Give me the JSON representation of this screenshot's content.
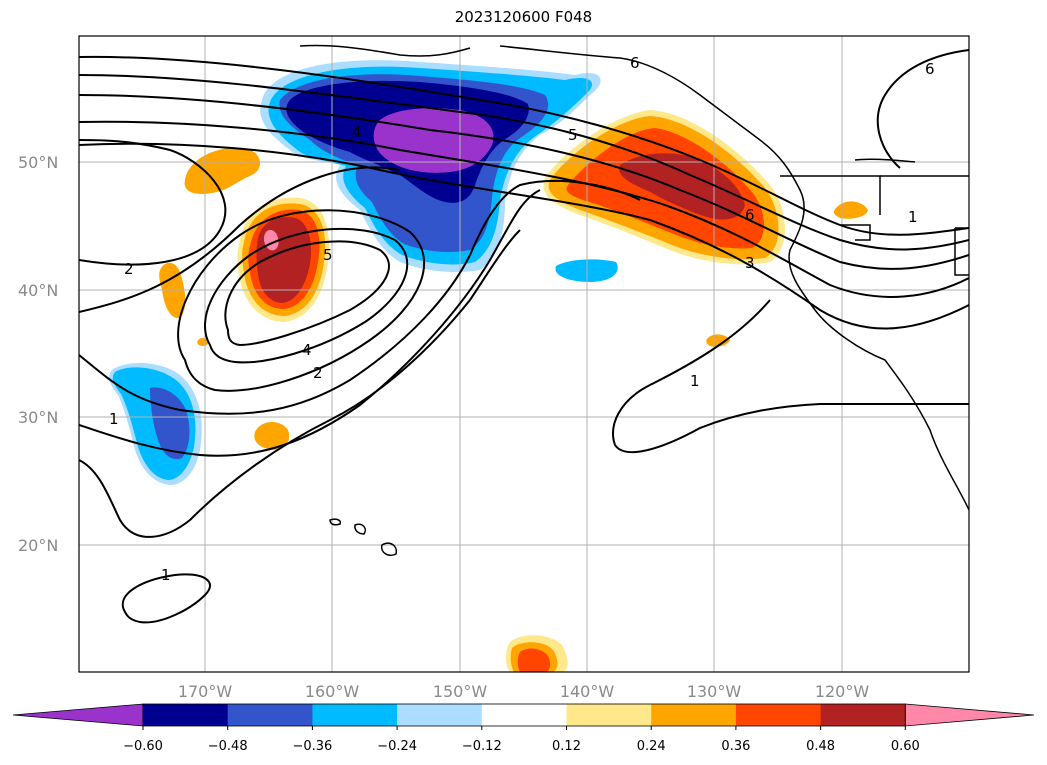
{
  "title": "2023120600 F048",
  "lat_labels": [
    "50°N",
    "40°N",
    "30°N",
    "20°N"
  ],
  "lon_labels": [
    "170°W",
    "160°W",
    "150°W",
    "140°W",
    "130°W",
    "120°W"
  ],
  "colorbar": {
    "tick_labels": [
      "−0.60",
      "−0.48",
      "−0.36",
      "−0.24",
      "−0.12",
      "0.12",
      "0.24",
      "0.36",
      "0.48",
      "0.60"
    ],
    "colors": [
      "#9933cc",
      "#000090",
      "#3355cc",
      "#00bbff",
      "#aaddff",
      "#ffffff",
      "#ffe88a",
      "#ffa500",
      "#ff4500",
      "#b22222",
      "#ff88aa"
    ]
  },
  "contour_labels": [
    "6",
    "6",
    "4",
    "5",
    "5",
    "6",
    "3",
    "2",
    "4",
    "2",
    "1",
    "1",
    "1",
    "1"
  ],
  "fill_colors": {
    "purple": "#9933cc",
    "navy": "#000090",
    "blue": "#3355cc",
    "cyan": "#00bbff",
    "lightblue": "#aaddff",
    "yellow": "#ffe88a",
    "orange": "#ffa500",
    "redorange": "#ff4500",
    "darkred": "#b22222",
    "pink": "#ff88aa"
  }
}
